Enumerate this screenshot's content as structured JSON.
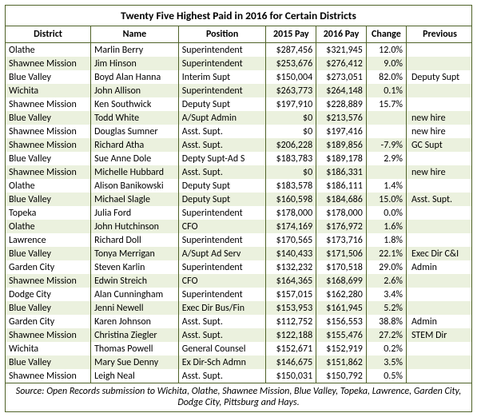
{
  "title": "Twenty Five Highest Paid in 2016 for Certain Districts",
  "columns": [
    "District",
    "Name",
    "Position",
    "2015 Pay",
    "2016 Pay",
    "Change",
    "Previous"
  ],
  "rows": [
    [
      "Olathe",
      "Marlin Berry",
      "Superintendent",
      "$287,456",
      "$321,945",
      "12.0%",
      ""
    ],
    [
      "Shawnee Mission",
      "Jim Hinson",
      "Superintendent",
      "$253,676",
      "$276,412",
      "9.0%",
      ""
    ],
    [
      "Blue Valley",
      "Boyd Alan Hanna",
      "Interim Supt",
      "$150,004",
      "$273,051",
      "82.0%",
      "Deputy Supt"
    ],
    [
      "Wichita",
      "John Allison",
      "Superintendent",
      "$263,773",
      "$264,148",
      "0.1%",
      ""
    ],
    [
      "Shawnee Mission",
      "Ken Southwick",
      "Deputy Supt",
      "$197,910",
      "$228,889",
      "15.7%",
      ""
    ],
    [
      "Blue Valley",
      "Todd White",
      "A/Supt Admin",
      "$0",
      "$213,576",
      "",
      "new hire"
    ],
    [
      "Shawnee Mission",
      "Douglas Sumner",
      "Asst. Supt.",
      "$0",
      "$197,416",
      "",
      "new hire"
    ],
    [
      "Shawnee Mission",
      "Richard Atha",
      "Asst. Supt.",
      "$206,228",
      "$189,856",
      "-7.9%",
      "GC Supt"
    ],
    [
      "Blue Valley",
      "Sue Anne Dole",
      "Depty Supt-Ad S",
      "$183,783",
      "$189,178",
      "2.9%",
      ""
    ],
    [
      "Shawnee Mission",
      "Michelle Hubbard",
      "Asst. Supt.",
      "$0",
      "$186,331",
      "",
      "new hire"
    ],
    [
      "Olathe",
      "Alison Banikowski",
      "Deputy Supt",
      "$183,578",
      "$186,111",
      "1.4%",
      ""
    ],
    [
      "Blue Valley",
      "Michael Slagle",
      "Deputy Supt",
      "$160,598",
      "$184,686",
      "15.0%",
      "Asst. Supt."
    ],
    [
      "Topeka",
      "Julia Ford",
      "Superintendent",
      "$178,000",
      "$178,000",
      "0.0%",
      ""
    ],
    [
      "Olathe",
      "John Hutchinson",
      "CFO",
      "$174,169",
      "$176,972",
      "1.6%",
      ""
    ],
    [
      "Lawrence",
      "Richard Doll",
      "Superintendent",
      "$170,565",
      "$173,716",
      "1.8%",
      ""
    ],
    [
      "Blue Valley",
      "Tonya Merrigan",
      "A/Supt Ad Serv",
      "$140,433",
      "$171,506",
      "22.1%",
      "Exec Dir C&I"
    ],
    [
      "Garden City",
      "Steven Karlin",
      "Superintendent",
      "$132,232",
      "$170,518",
      "29.0%",
      "Admin"
    ],
    [
      "Shawnee Mission",
      "Edwin Streich",
      "CFO",
      "$164,365",
      "$168,699",
      "2.6%",
      ""
    ],
    [
      "Dodge City",
      "Alan Cunningham",
      "Superintendent",
      "$157,015",
      "$162,280",
      "3.4%",
      ""
    ],
    [
      "Blue Valley",
      "Jenni Newell",
      "Exec Dir Bus/Fin",
      "$153,953",
      "$161,945",
      "5.2%",
      ""
    ],
    [
      "Garden City",
      "Karen Johnson",
      "Asst. Supt.",
      "$112,752",
      "$156,553",
      "38.8%",
      "Admin"
    ],
    [
      "Shawnee Mission",
      "Christina Ziegler",
      "Asst. Supt.",
      "$122,188",
      "$155,476",
      "27.2%",
      "STEM Dir"
    ],
    [
      "Wichita",
      "Thomas Powell",
      "General Counsel",
      "$152,671",
      "$152,919",
      "0.2%",
      ""
    ],
    [
      "Blue Valley",
      "Mary Sue Denny",
      "Ex Dir-Sch Admn",
      "$146,675",
      "$151,862",
      "3.5%",
      ""
    ],
    [
      "Shawnee Mission",
      "Leigh Neal",
      "Asst. Supt.",
      "$150,031",
      "$150,792",
      "0.5%",
      ""
    ]
  ],
  "source": "Source: Open Records submission to Wichita, Olathe, Shawnee Mission, Blue Valley, Topeka, Lawrence, Garden City, Dodge City, Pittsburg and Hays.",
  "colors": {
    "border": "#4f6228",
    "band": "#ebf1de",
    "text": "#000000",
    "bg": "#ffffff"
  },
  "font_family": "Calibri",
  "title_fontsize": 13.5,
  "body_fontsize": 12
}
